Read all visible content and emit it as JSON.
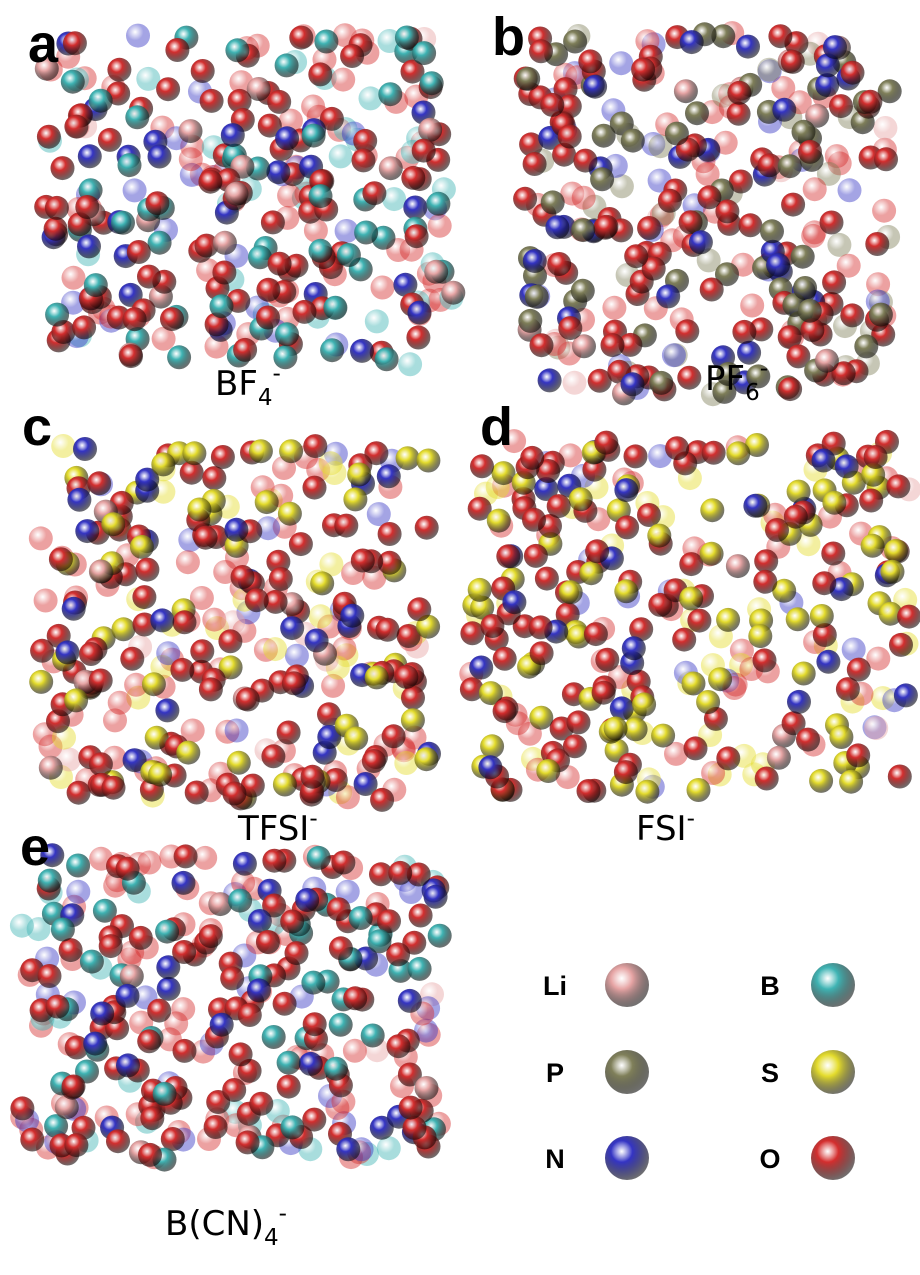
{
  "panels": [
    {
      "letter": "a",
      "caption": {
        "base": "BF",
        "sub": "4",
        "sup": "-"
      }
    },
    {
      "letter": "b",
      "caption": {
        "base": "PF",
        "sub": "6",
        "sup": "-"
      }
    },
    {
      "letter": "c",
      "caption": {
        "base": "TFSI",
        "sup": "-"
      }
    },
    {
      "letter": "d",
      "caption": {
        "base": "FSI",
        "sup": "-"
      }
    },
    {
      "letter": "e",
      "caption": {
        "base": "B(CN)",
        "sub": "4",
        "sup": "-"
      }
    }
  ],
  "legend": [
    {
      "symbol": "Li",
      "color": "#e6a4a4"
    },
    {
      "symbol": "B",
      "color": "#3fb4b4"
    },
    {
      "symbol": "P",
      "color": "#80805a"
    },
    {
      "symbol": "S",
      "color": "#e4dc2c"
    },
    {
      "symbol": "N",
      "color": "#3434c4"
    },
    {
      "symbol": "O",
      "color": "#d42e2e"
    }
  ]
}
